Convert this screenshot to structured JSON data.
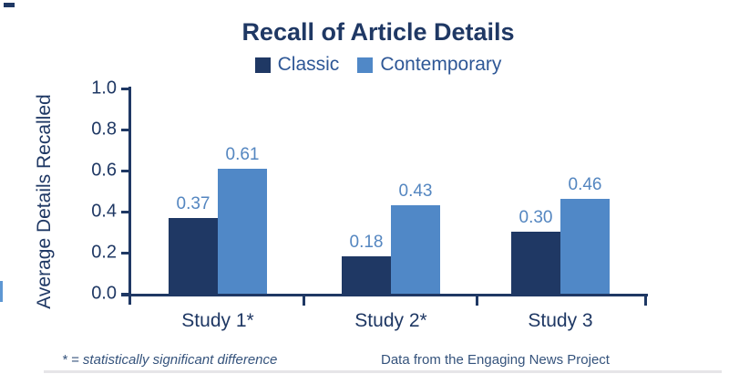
{
  "chart_data": {
    "type": "bar",
    "title": "Recall of Article Details",
    "ylabel": "Average Details Recalled",
    "xlabel": "",
    "categories": [
      "Study 1*",
      "Study 2*",
      "Study 3"
    ],
    "series": [
      {
        "name": "Classic",
        "color": "#1f3864",
        "values": [
          0.37,
          0.18,
          0.3
        ]
      },
      {
        "name": "Contemporary",
        "color": "#5088c7",
        "values": [
          0.61,
          0.43,
          0.46
        ]
      }
    ],
    "ylim": [
      0.0,
      1.0
    ],
    "ytick_labels": [
      "1.0",
      "0.8",
      "0.6",
      "0.4",
      "0.2",
      "0.0"
    ],
    "grid": false,
    "legend_position": "top-center",
    "value_labels": true,
    "colors": {
      "axis": "#1f3864",
      "tick_text": "#1f3864",
      "category_text": "#1f3864",
      "legend_text": "#2e5796",
      "value_label_text": "#5486c0"
    }
  },
  "footnotes": {
    "significance": "* = statistically significant difference",
    "source": "Data from the Engaging News Project"
  }
}
